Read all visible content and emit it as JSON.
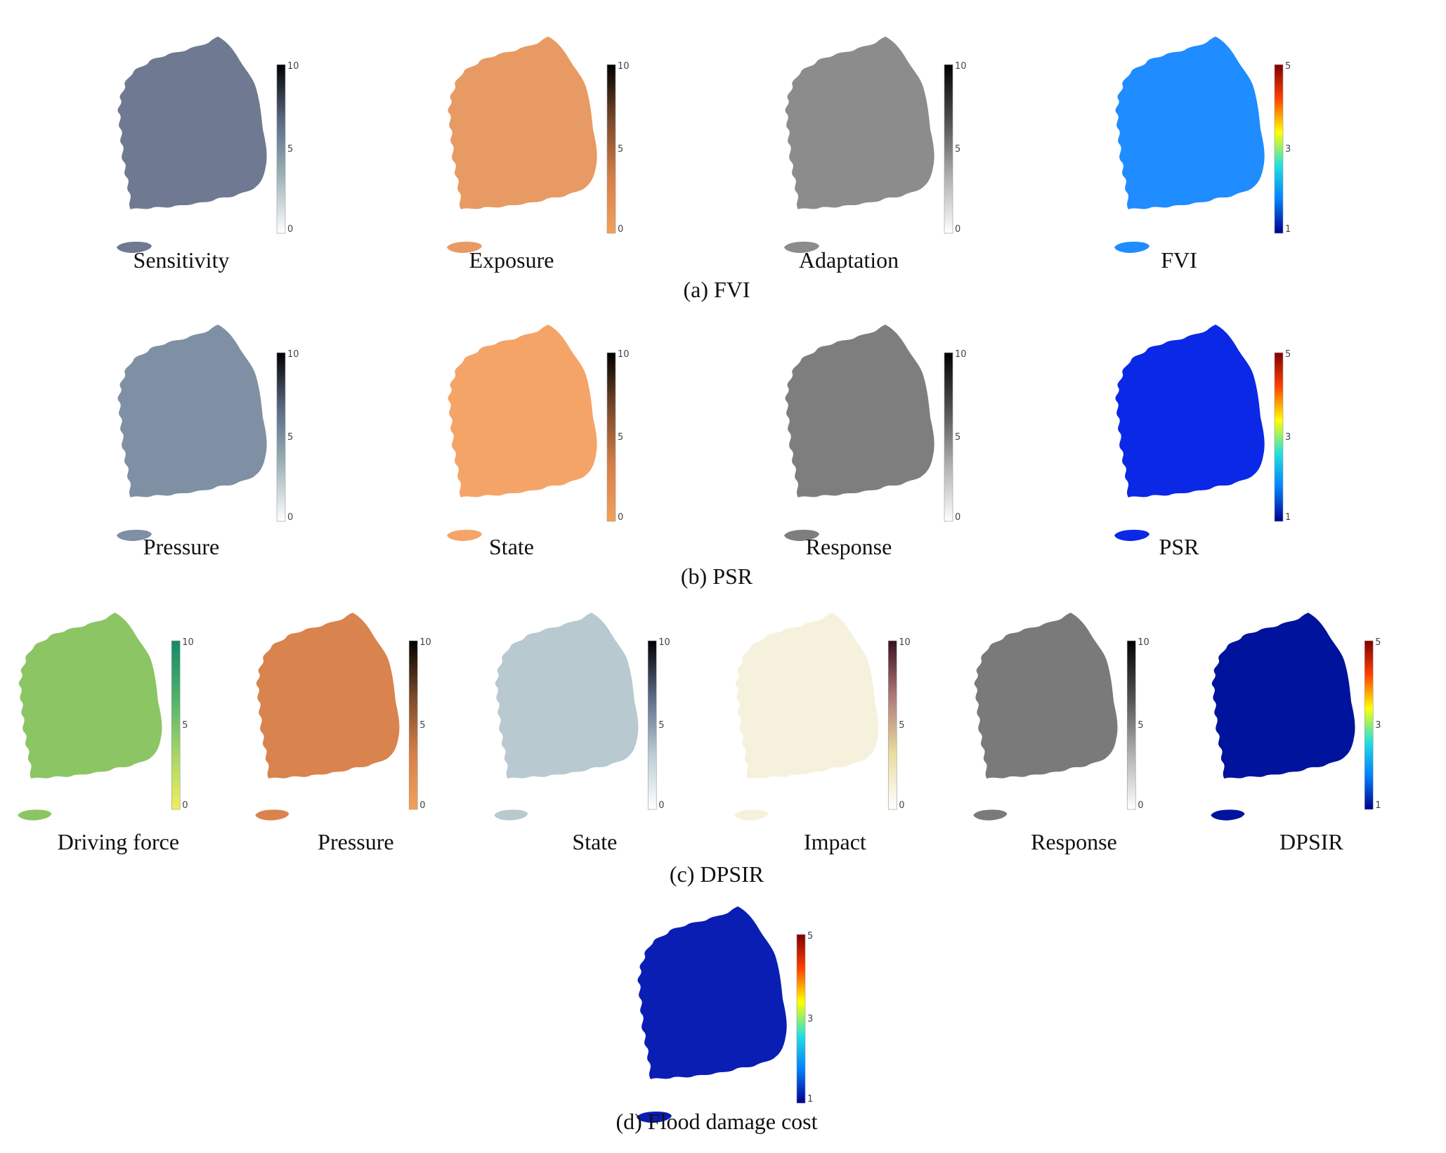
{
  "groups": [
    {
      "caption": "(a) FVI",
      "panels": [
        {
          "label": "Sensitivity",
          "ramp": [
            "#ffffff",
            "#9fb4b8",
            "#5a6a86",
            "#000000"
          ],
          "fill": "#6f7a92",
          "ticks": [
            "10",
            "5",
            "0"
          ]
        },
        {
          "label": "Exposure",
          "ramp": [
            "#f3a15a",
            "#d77f47",
            "#7a4a2a",
            "#000000"
          ],
          "fill": "#e79a63",
          "ticks": [
            "10",
            "5",
            "0"
          ]
        },
        {
          "label": "Adaptation",
          "ramp": [
            "#ffffff",
            "#b0b0b0",
            "#505050",
            "#000000"
          ],
          "fill": "#8c8c8c",
          "ticks": [
            "10",
            "5",
            "0"
          ]
        },
        {
          "label": "FVI",
          "ramp": [
            "#00008f",
            "#0080ff",
            "#20e0e0",
            "#ffff00",
            "#ff4000",
            "#800000"
          ],
          "fill": "#1f8cff",
          "ticks": [
            "5",
            "3",
            "1"
          ]
        }
      ]
    },
    {
      "caption": "(b) PSR",
      "panels": [
        {
          "label": "Pressure",
          "ramp": [
            "#ffffff",
            "#9fb4b8",
            "#5a6a86",
            "#000000"
          ],
          "fill": "#7f90a4",
          "ticks": [
            "10",
            "5",
            "0"
          ]
        },
        {
          "label": "State",
          "ramp": [
            "#f3a15a",
            "#d77f47",
            "#7a4a2a",
            "#000000"
          ],
          "fill": "#f5a468",
          "ticks": [
            "10",
            "5",
            "0"
          ]
        },
        {
          "label": "Response",
          "ramp": [
            "#ffffff",
            "#b0b0b0",
            "#505050",
            "#000000"
          ],
          "fill": "#7e7e7e",
          "ticks": [
            "10",
            "5",
            "0"
          ]
        },
        {
          "label": "PSR",
          "ramp": [
            "#00008f",
            "#0080ff",
            "#20e0e0",
            "#ffff00",
            "#ff4000",
            "#800000"
          ],
          "fill": "#0a28e6",
          "ticks": [
            "5",
            "3",
            "1"
          ]
        }
      ]
    },
    {
      "caption": "(c) DPSIR",
      "panels": [
        {
          "label": "Driving force",
          "ramp": [
            "#eef05a",
            "#a6d46a",
            "#4fb06a",
            "#138a6a"
          ],
          "fill": "#8cc563",
          "ticks": [
            "10",
            "5",
            "0"
          ]
        },
        {
          "label": "Pressure",
          "ramp": [
            "#f3a15a",
            "#d77f47",
            "#7a4a2a",
            "#000000"
          ],
          "fill": "#d9834e",
          "ticks": [
            "10",
            "5",
            "0"
          ]
        },
        {
          "label": "State",
          "ramp": [
            "#ffffff",
            "#b9ccd2",
            "#5a6a86",
            "#000000"
          ],
          "fill": "#b8c9d0",
          "ticks": [
            "10",
            "5",
            "0"
          ]
        },
        {
          "label": "Impact",
          "ramp": [
            "#ffffff",
            "#eadca0",
            "#b07a78",
            "#3a1020"
          ],
          "fill": "#f5f1dc",
          "ticks": [
            "10",
            "5",
            "0"
          ]
        },
        {
          "label": "Response",
          "ramp": [
            "#ffffff",
            "#b0b0b0",
            "#505050",
            "#000000"
          ],
          "fill": "#7a7a7a",
          "ticks": [
            "10",
            "5",
            "0"
          ]
        },
        {
          "label": "DPSIR",
          "ramp": [
            "#00008f",
            "#0080ff",
            "#20e0e0",
            "#ffff00",
            "#ff4000",
            "#800000"
          ],
          "fill": "#00139c",
          "ticks": [
            "5",
            "3",
            "1"
          ]
        }
      ]
    },
    {
      "caption": "(d) Flood damage cost",
      "panels": [
        {
          "label": "",
          "ramp": [
            "#00008f",
            "#0080ff",
            "#20e0e0",
            "#ffff00",
            "#ff4000",
            "#800000"
          ],
          "fill": "#0a1eb4",
          "ticks": [
            "5",
            "3",
            "1"
          ]
        }
      ]
    }
  ]
}
